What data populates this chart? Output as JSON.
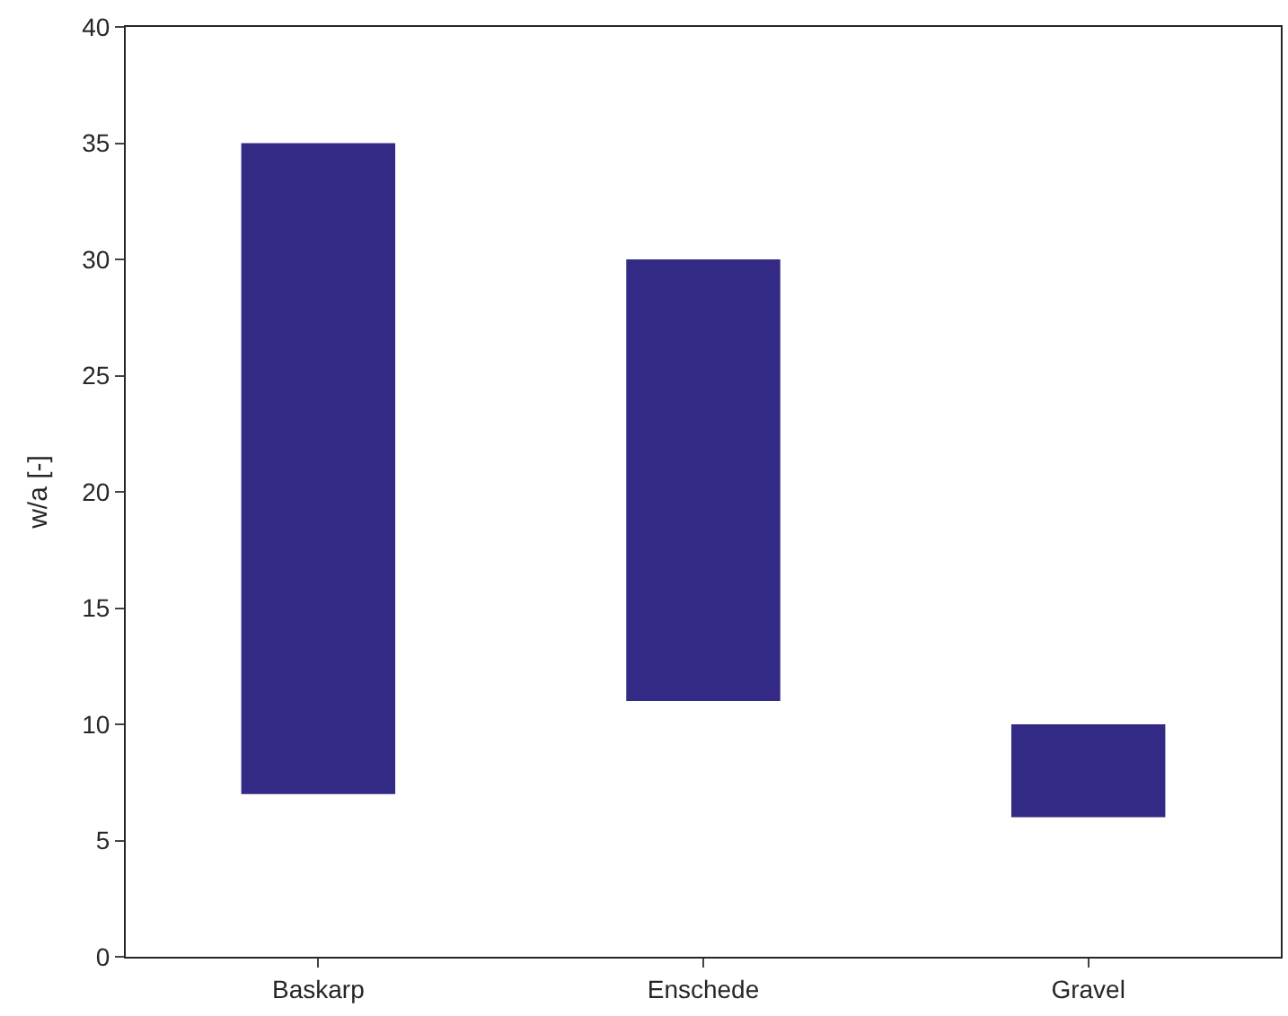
{
  "chart_data": {
    "type": "bar",
    "ylabel": "w/a [-]",
    "categories": [
      "Baskarp",
      "Enschede",
      "Gravel"
    ],
    "base": [
      7,
      11,
      6
    ],
    "values": [
      28,
      19,
      4
    ],
    "color": "#332a86",
    "ylim": [
      0,
      40
    ],
    "yticks": [
      0,
      5,
      10,
      15,
      20,
      25,
      30,
      35,
      40
    ]
  }
}
